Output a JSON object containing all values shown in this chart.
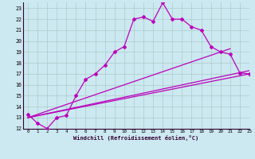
{
  "xlabel": "Windchill (Refroidissement éolien,°C)",
  "bg_color": "#cce8f0",
  "line_color": "#bb00bb",
  "grid_color": "#aacccc",
  "xlim": [
    -0.5,
    23
  ],
  "ylim": [
    12,
    23.5
  ],
  "yticks": [
    12,
    13,
    14,
    15,
    16,
    17,
    18,
    19,
    20,
    21,
    22,
    23
  ],
  "xticks": [
    0,
    1,
    2,
    3,
    4,
    5,
    6,
    7,
    8,
    9,
    10,
    11,
    12,
    13,
    14,
    15,
    16,
    17,
    18,
    19,
    20,
    21,
    22,
    23
  ],
  "curve1_x": [
    0,
    1,
    2,
    3,
    4,
    5,
    6,
    7,
    8,
    9,
    10,
    11,
    12,
    13,
    14,
    15,
    16,
    17,
    18,
    19,
    20,
    21,
    22,
    23
  ],
  "curve1_y": [
    13.3,
    12.5,
    12.0,
    13.0,
    13.2,
    15.0,
    16.5,
    17.0,
    17.8,
    19.0,
    19.5,
    22.0,
    22.2,
    21.8,
    23.5,
    22.0,
    22.0,
    21.3,
    21.0,
    19.5,
    19.0,
    18.8,
    17.1,
    17.0
  ],
  "line2_x": [
    0,
    23
  ],
  "line2_y": [
    13.0,
    17.0
  ],
  "line3_x": [
    0,
    23
  ],
  "line3_y": [
    13.0,
    17.3
  ],
  "line4_x": [
    0,
    21
  ],
  "line4_y": [
    13.0,
    19.3
  ]
}
